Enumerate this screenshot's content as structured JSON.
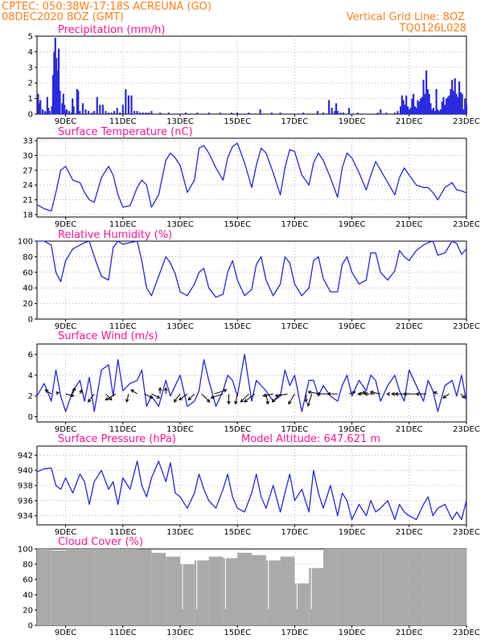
{
  "header": {
    "left_line1": "CPTEC:   050:38W-17:18S   ACREUNA (GO)",
    "left_line2": "08DEC2020 8OZ (GMT)",
    "right_line1": "Vertical Grid Line: 8OZ",
    "right_line2": "TQ0126L028"
  },
  "colors": {
    "header": "#ff7f1a",
    "titles": "#ff1493",
    "series": "#2626e6",
    "bars": "#2a2ae0",
    "cloud": "#aaaaaa",
    "grid": "#888888"
  },
  "date_labels": [
    "9DEC",
    "11DEC",
    "13DEC",
    "15DEC",
    "17DEC",
    "19DEC",
    "21DEC",
    "23DEC"
  ],
  "date_days": [
    9,
    11,
    13,
    15,
    17,
    19,
    21,
    23
  ],
  "x_range_days": [
    8.0,
    23.0
  ],
  "chart_data": [
    {
      "id": "precip",
      "type": "bar",
      "title": "Precipitation (mm/h)",
      "unit": "mm/h",
      "ylim": [
        0,
        5
      ],
      "yticks": [
        0,
        1,
        2,
        3,
        4,
        5
      ],
      "x": [
        8.04,
        8.08,
        8.12,
        8.2,
        8.28,
        8.32,
        8.36,
        8.4,
        8.44,
        8.52,
        8.56,
        8.6,
        8.64,
        8.68,
        8.72,
        8.76,
        8.8,
        8.88,
        8.92,
        8.96,
        9.0,
        9.04,
        9.12,
        9.2,
        9.24,
        9.28,
        9.4,
        9.44,
        9.5,
        9.6,
        9.7,
        9.8,
        9.92,
        10.0,
        10.1,
        10.2,
        10.3,
        10.4,
        10.5,
        10.6,
        10.7,
        10.8,
        10.9,
        11.0,
        11.1,
        11.2,
        11.3,
        11.4,
        11.5,
        11.6,
        11.7,
        11.8,
        11.9,
        12.0,
        12.3,
        12.6,
        13.2,
        13.6,
        14.0,
        14.4,
        14.8,
        15.0,
        15.4,
        15.8,
        16.2,
        16.5,
        17.3,
        17.8,
        18.0,
        18.2,
        18.3,
        18.4,
        18.45,
        18.5,
        18.6,
        18.7,
        18.9,
        19.2,
        19.9,
        20.0,
        20.2,
        20.5,
        20.6,
        20.7,
        20.75,
        20.8,
        20.85,
        20.9,
        20.95,
        21.0,
        21.05,
        21.1,
        21.15,
        21.2,
        21.25,
        21.3,
        21.35,
        21.4,
        21.45,
        21.5,
        21.55,
        21.6,
        21.65,
        21.7,
        21.75,
        21.8,
        21.85,
        21.9,
        21.95,
        22.0,
        22.05,
        22.1,
        22.15,
        22.2,
        22.25,
        22.3,
        22.35,
        22.4,
        22.45,
        22.5,
        22.55,
        22.6,
        22.65,
        22.7,
        22.75,
        22.8,
        22.85,
        22.9,
        22.95,
        23.0
      ],
      "values": [
        1.3,
        0.7,
        0.9,
        0.3,
        0.2,
        0.1,
        1.1,
        0.4,
        0.2,
        0.5,
        2.5,
        4.0,
        4.9,
        3.6,
        2.8,
        4.2,
        1.5,
        0.7,
        1.3,
        0.6,
        0.2,
        0.3,
        0.2,
        0.1,
        1.0,
        0.5,
        1.6,
        1.5,
        0.2,
        0.7,
        0.3,
        0.2,
        0.1,
        0.2,
        1.1,
        0.6,
        0.6,
        0.2,
        0.1,
        0.1,
        0.2,
        0.4,
        0.1,
        0.6,
        1.6,
        1.2,
        1.2,
        0.2,
        0.2,
        0.1,
        0.1,
        0.1,
        0.1,
        0.2,
        0.1,
        0.1,
        0.1,
        0.1,
        0.1,
        0.1,
        0.1,
        0.1,
        0.1,
        0.3,
        0.1,
        0.1,
        0.1,
        0.2,
        0.1,
        0.9,
        0.4,
        0.2,
        0.7,
        0.2,
        0.1,
        0.1,
        0.4,
        0.1,
        0.1,
        0.3,
        0.1,
        0.1,
        0.2,
        0.5,
        1.2,
        0.9,
        0.6,
        1.2,
        0.5,
        0.3,
        0.4,
        1.0,
        1.3,
        0.5,
        0.4,
        0.9,
        0.8,
        1.0,
        1.1,
        2.2,
        1.3,
        2.8,
        1.6,
        1.3,
        0.7,
        0.3,
        0.4,
        0.2,
        1.6,
        0.3,
        0.2,
        0.3,
        0.8,
        1.1,
        0.6,
        1.0,
        1.1,
        1.2,
        1.6,
        2.2,
        1.5,
        2.3,
        1.3,
        1.1,
        2.1,
        1.4,
        1.3,
        0.3,
        1.0,
        0.6
      ]
    },
    {
      "id": "temp",
      "type": "line",
      "title": "Surface Temperature (nC)",
      "unit": "°C",
      "ylim": [
        17.5,
        33.5
      ],
      "yticks": [
        18,
        21,
        24,
        27,
        30,
        33
      ],
      "x": [
        8.0,
        8.25,
        8.5,
        8.66,
        8.83,
        9.0,
        9.25,
        9.5,
        9.66,
        9.83,
        10.0,
        10.25,
        10.5,
        10.66,
        10.83,
        11.0,
        11.25,
        11.5,
        11.66,
        11.83,
        12.0,
        12.25,
        12.5,
        12.66,
        12.83,
        13.0,
        13.25,
        13.5,
        13.66,
        13.83,
        14.0,
        14.25,
        14.5,
        14.66,
        14.83,
        15.0,
        15.25,
        15.5,
        15.66,
        15.83,
        16.0,
        16.25,
        16.5,
        16.66,
        16.83,
        17.0,
        17.25,
        17.5,
        17.66,
        17.83,
        18.0,
        18.25,
        18.5,
        18.66,
        18.83,
        19.0,
        19.25,
        19.5,
        19.66,
        19.83,
        20.0,
        20.25,
        20.5,
        20.66,
        20.83,
        21.0,
        21.25,
        21.5,
        21.66,
        21.83,
        22.0,
        22.25,
        22.5,
        22.66,
        22.83,
        23.0
      ],
      "values": [
        20.0,
        19.2,
        18.7,
        22.5,
        27.0,
        27.8,
        25.0,
        24.5,
        22.5,
        21.0,
        20.5,
        25.5,
        27.8,
        26.0,
        22.0,
        19.5,
        19.8,
        23.5,
        25.0,
        24.0,
        19.5,
        22.0,
        29.0,
        30.5,
        29.5,
        28.0,
        22.5,
        25.0,
        31.5,
        32.0,
        30.5,
        27.5,
        25.0,
        29.5,
        31.8,
        32.5,
        28.5,
        23.5,
        28.0,
        31.5,
        30.5,
        26.5,
        22.0,
        27.5,
        31.2,
        30.8,
        26.0,
        24.0,
        28.5,
        30.5,
        29.0,
        25.5,
        21.5,
        27.5,
        30.5,
        29.5,
        26.5,
        23.0,
        26.0,
        28.8,
        27.0,
        24.5,
        22.0,
        25.5,
        27.5,
        26.0,
        24.0,
        23.5,
        23.5,
        22.5,
        21.0,
        23.5,
        24.5,
        23.0,
        22.8,
        22.4
      ]
    },
    {
      "id": "rh",
      "type": "line",
      "title": "Relative Humidity (%)",
      "unit": "%",
      "ylim": [
        0,
        100
      ],
      "yticks": [
        0,
        20,
        40,
        60,
        80,
        100
      ],
      "x": [
        8.0,
        8.25,
        8.5,
        8.66,
        8.83,
        9.0,
        9.25,
        9.5,
        9.66,
        9.83,
        10.0,
        10.25,
        10.5,
        10.66,
        10.83,
        11.0,
        11.25,
        11.5,
        11.66,
        11.83,
        12.0,
        12.25,
        12.5,
        12.66,
        12.83,
        13.0,
        13.25,
        13.5,
        13.66,
        13.83,
        14.0,
        14.25,
        14.5,
        14.66,
        14.83,
        15.0,
        15.25,
        15.5,
        15.66,
        15.83,
        16.0,
        16.25,
        16.5,
        16.66,
        16.83,
        17.0,
        17.25,
        17.5,
        17.66,
        17.83,
        18.0,
        18.25,
        18.5,
        18.66,
        18.83,
        19.0,
        19.25,
        19.5,
        19.66,
        19.83,
        20.0,
        20.25,
        20.5,
        20.66,
        20.83,
        21.0,
        21.25,
        21.5,
        21.66,
        21.83,
        22.0,
        22.25,
        22.5,
        22.66,
        22.83,
        23.0
      ],
      "values": [
        100,
        100,
        95,
        60,
        48,
        75,
        90,
        95,
        98,
        100,
        80,
        55,
        50,
        92,
        100,
        96,
        98,
        100,
        75,
        40,
        30,
        55,
        80,
        72,
        58,
        35,
        30,
        45,
        60,
        65,
        40,
        28,
        32,
        60,
        75,
        50,
        30,
        38,
        70,
        80,
        50,
        30,
        45,
        80,
        72,
        45,
        30,
        40,
        75,
        80,
        52,
        35,
        35,
        70,
        80,
        60,
        45,
        50,
        85,
        85,
        60,
        50,
        62,
        88,
        80,
        75,
        88,
        95,
        98,
        100,
        82,
        85,
        100,
        97,
        83,
        90
      ]
    },
    {
      "id": "wind",
      "type": "line",
      "title": "Surface Wind (m/s)",
      "unit": "m/s",
      "ylim": [
        -0.5,
        7
      ],
      "yticks": [
        0,
        2,
        4,
        6
      ],
      "x": [
        8.0,
        8.25,
        8.5,
        8.66,
        8.83,
        9.0,
        9.25,
        9.5,
        9.66,
        9.83,
        10.0,
        10.25,
        10.5,
        10.66,
        10.83,
        11.0,
        11.25,
        11.5,
        11.66,
        11.83,
        12.0,
        12.25,
        12.5,
        12.66,
        12.83,
        13.0,
        13.25,
        13.5,
        13.66,
        13.83,
        14.0,
        14.25,
        14.5,
        14.66,
        14.83,
        15.0,
        15.25,
        15.5,
        15.66,
        15.83,
        16.0,
        16.25,
        16.5,
        16.66,
        16.83,
        17.0,
        17.25,
        17.5,
        17.66,
        17.83,
        18.0,
        18.25,
        18.5,
        18.66,
        18.83,
        19.0,
        19.25,
        19.5,
        19.66,
        19.83,
        20.0,
        20.25,
        20.5,
        20.66,
        20.83,
        21.0,
        21.25,
        21.5,
        21.66,
        21.83,
        22.0,
        22.25,
        22.5,
        22.66,
        22.83,
        23.0
      ],
      "values": [
        2.0,
        3.2,
        1.5,
        4.5,
        2.0,
        0.5,
        2.5,
        3.5,
        1.5,
        3.8,
        0.5,
        4.5,
        5.0,
        2.0,
        5.5,
        2.5,
        3.2,
        3.5,
        4.5,
        1.0,
        2.0,
        1.0,
        3.5,
        2.0,
        3.0,
        4.0,
        1.0,
        1.5,
        2.5,
        5.5,
        3.5,
        1.0,
        2.5,
        4.0,
        3.5,
        2.0,
        6.0,
        1.5,
        3.5,
        3.0,
        2.5,
        1.5,
        2.0,
        4.5,
        3.0,
        4.0,
        0.5,
        3.5,
        3.5,
        2.0,
        3.0,
        2.0,
        1.5,
        3.0,
        4.0,
        2.0,
        3.5,
        2.5,
        4.0,
        3.5,
        1.5,
        3.0,
        4.0,
        2.5,
        1.5,
        4.5,
        3.0,
        1.5,
        3.5,
        2.5,
        0.5,
        3.0,
        3.5,
        2.0,
        4.0,
        1.5
      ],
      "arrows": {
        "x": [
          8.5,
          8.75,
          9.0,
          9.25,
          9.5,
          10.0,
          10.4,
          10.75,
          11.2,
          11.5,
          11.75,
          12.0,
          12.3,
          12.5,
          13.0,
          13.25,
          13.5,
          13.75,
          14.2,
          14.5,
          14.7,
          15.0,
          15.4,
          15.6,
          16.0,
          16.25,
          16.5,
          16.75,
          17.0,
          17.4,
          17.6,
          17.9,
          18.2,
          18.5,
          18.9,
          19.2,
          19.5,
          19.8,
          20.0,
          20.3,
          20.6,
          21.0,
          21.3,
          21.6,
          22.0,
          22.4,
          22.8
        ],
        "u": [
          -1.5,
          -0.5,
          2.0,
          0.5,
          0.5,
          -1.5,
          1.5,
          -2.5,
          -0.5,
          -1.5,
          2.0,
          2.0,
          0.0,
          0.0,
          -1.5,
          -2.0,
          -1.5,
          2.0,
          3.0,
          -3.0,
          0.0,
          -0.5,
          -2.0,
          -2.5,
          0.5,
          -2.5,
          -2.0,
          -3.0,
          -1.5,
          0.0,
          -1.0,
          -3.0,
          -3.0,
          -2.5,
          1.5,
          2.0,
          -2.0,
          -2.5,
          -2.5,
          -0.5,
          -1.5,
          -3.5,
          -3.5,
          -2.5,
          -1.0,
          -1.5,
          1.0
        ],
        "v": [
          1.0,
          0.5,
          -0.5,
          1.5,
          1.0,
          -2.0,
          -1.5,
          -1.5,
          -2.0,
          1.0,
          -1.0,
          -1.0,
          1.5,
          1.5,
          -2.0,
          -1.5,
          -1.5,
          -2.0,
          1.0,
          -1.0,
          -2.5,
          -2.5,
          -2.0,
          -2.0,
          -2.5,
          -0.5,
          -2.0,
          -0.5,
          -2.5,
          -2.0,
          -3.0,
          0.5,
          0.0,
          0.0,
          0.5,
          0.5,
          0.0,
          0.0,
          0.5,
          0.0,
          0.0,
          0.0,
          0.0,
          0.0,
          0.5,
          -1.0,
          -1.0
        ]
      }
    },
    {
      "id": "pres",
      "type": "line",
      "title": "Surface Pressure (hPa)",
      "annotation": "Model Altitude: 647.621 m",
      "unit": "hPa",
      "ylim": [
        932.8,
        943.2
      ],
      "yticks": [
        934,
        936,
        938,
        940,
        942
      ],
      "x": [
        8.0,
        8.25,
        8.5,
        8.66,
        8.83,
        9.0,
        9.25,
        9.5,
        9.66,
        9.83,
        10.0,
        10.25,
        10.5,
        10.66,
        10.83,
        11.0,
        11.25,
        11.5,
        11.66,
        11.83,
        12.0,
        12.25,
        12.5,
        12.66,
        12.83,
        13.0,
        13.25,
        13.5,
        13.66,
        13.83,
        14.0,
        14.25,
        14.5,
        14.66,
        14.83,
        15.0,
        15.25,
        15.5,
        15.66,
        15.83,
        16.0,
        16.25,
        16.5,
        16.66,
        16.83,
        17.0,
        17.25,
        17.5,
        17.66,
        17.83,
        18.0,
        18.25,
        18.5,
        18.66,
        18.83,
        19.0,
        19.25,
        19.5,
        19.66,
        19.83,
        20.0,
        20.25,
        20.5,
        20.66,
        20.83,
        21.0,
        21.25,
        21.5,
        21.66,
        21.83,
        22.0,
        22.25,
        22.5,
        22.66,
        22.83,
        23.0
      ],
      "values": [
        939.8,
        940.2,
        940.3,
        938.0,
        937.5,
        939.0,
        937.0,
        939.5,
        938.5,
        935.5,
        938.5,
        940.0,
        937.5,
        938.5,
        935.5,
        939.0,
        937.5,
        941.2,
        938.0,
        936.5,
        939.0,
        941.2,
        938.5,
        941.0,
        937.0,
        936.5,
        935.0,
        937.0,
        939.5,
        937.5,
        936.0,
        935.0,
        937.5,
        939.5,
        936.5,
        935.0,
        934.5,
        937.0,
        939.5,
        936.5,
        935.0,
        938.0,
        934.5,
        937.0,
        939.5,
        936.0,
        937.5,
        934.5,
        940.0,
        937.0,
        935.0,
        938.0,
        934.0,
        937.0,
        936.0,
        933.5,
        935.5,
        934.0,
        936.0,
        934.5,
        935.0,
        936.0,
        933.5,
        935.5,
        934.5,
        934.0,
        933.5,
        935.5,
        936.5,
        934.0,
        935.0,
        935.5,
        933.5,
        934.5,
        933.5,
        936.0
      ]
    },
    {
      "id": "cloud",
      "type": "bar",
      "title": "Cloud Cover (%)",
      "unit": "%",
      "ylim": [
        0,
        100
      ],
      "yticks": [
        0,
        20,
        40,
        60,
        80,
        100
      ],
      "x": [
        8.0,
        8.5,
        9.0,
        9.5,
        10.0,
        10.5,
        11.0,
        11.5,
        12.0,
        12.5,
        13.0,
        13.5,
        14.0,
        14.5,
        15.0,
        15.5,
        16.0,
        16.5,
        17.0,
        17.5,
        18.0,
        18.5,
        19.0,
        19.5,
        20.0,
        20.5,
        21.0,
        21.5,
        22.0,
        22.5,
        23.0
      ],
      "values": [
        100,
        98,
        100,
        100,
        100,
        100,
        100,
        99,
        95,
        90,
        80,
        85,
        90,
        88,
        95,
        92,
        85,
        90,
        55,
        75,
        100,
        100,
        100,
        100,
        100,
        100,
        100,
        100,
        100,
        100,
        100
      ]
    }
  ]
}
